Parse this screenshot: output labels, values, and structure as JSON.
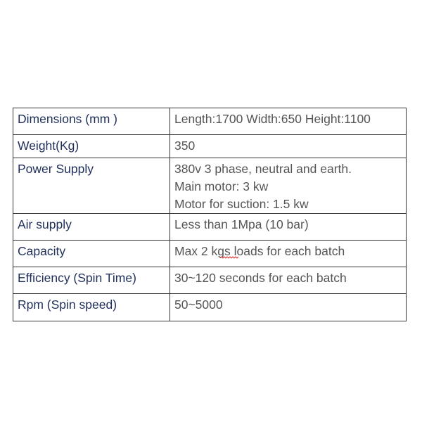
{
  "table": {
    "rows": [
      [
        "Dimensions (mm )",
        "Length:1700 Width:650 Height:1100"
      ],
      [
        "Weight(Kg)",
        "350"
      ],
      [
        "Power Supply",
        [
          "380v 3 phase, neutral and earth.",
          "Main motor: 3 kw",
          "Motor for suction: 1.5 kw"
        ]
      ],
      [
        "Air supply",
        "Less than 1Mpa (10 bar)"
      ],
      [
        "Capacity",
        "Max 2 kgs loads for each batch"
      ],
      [
        "Efficiency (Spin Time)",
        "30~120 seconds for each batch"
      ],
      [
        "Rpm (Spin speed)",
        "50~5000"
      ]
    ]
  }
}
